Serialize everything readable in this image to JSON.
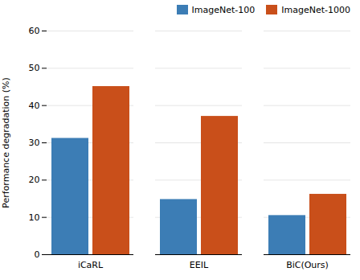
{
  "chart_data": {
    "type": "bar",
    "categories": [
      "iCaRL",
      "EEIL",
      "BiC(Ours)"
    ],
    "series": [
      {
        "name": "ImageNet-100",
        "color": "#3c7db5",
        "values": [
          31.2,
          14.8,
          10.5
        ]
      },
      {
        "name": "ImageNet-1000",
        "color": "#c94f1a",
        "values": [
          45.1,
          37.1,
          16.2
        ]
      }
    ],
    "ylabel": "Performance degradation (%)",
    "ylim": [
      0,
      60
    ],
    "yticks": [
      0,
      10,
      20,
      30,
      40,
      50,
      60
    ],
    "grid": true,
    "legend": "upper right"
  }
}
